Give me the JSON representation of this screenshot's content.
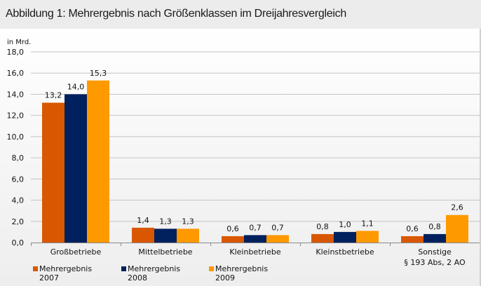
{
  "header": {
    "title": "Abbildung 1:  Mehrergebnis nach Größenklassen im Dreijahresvergleich"
  },
  "chart_data": {
    "type": "bar",
    "title": "Abbildung 1:  Mehrergebnis nach Größenklassen im Dreijahresvergleich",
    "ylabel": "in Mrd.",
    "xlabel": "",
    "ylim": [
      0,
      18
    ],
    "ytick_step": 2,
    "yticks": [
      "0,0",
      "2,0",
      "4,0",
      "6,0",
      "8,0",
      "10,0",
      "12,0",
      "14,0",
      "16,0",
      "18,0"
    ],
    "grid": true,
    "legend_position": "bottom",
    "categories": [
      {
        "line1": "Großbetriebe",
        "line2": ""
      },
      {
        "line1": "Mittelbetriebe",
        "line2": ""
      },
      {
        "line1": "Kleinbetriebe",
        "line2": ""
      },
      {
        "line1": "Kleinstbetriebe",
        "line2": ""
      },
      {
        "line1": "Sonstige",
        "line2": "§ 193 Abs, 2 AO"
      }
    ],
    "series": [
      {
        "name_line1": "Mehrergebnis",
        "name_line2": "2007",
        "color": "#d95700",
        "values": [
          13.2,
          1.4,
          0.6,
          0.8,
          0.6
        ],
        "labels": [
          "13,2",
          "1,4",
          "0,6",
          "0,8",
          "0,6"
        ]
      },
      {
        "name_line1": "Mehrergebnis",
        "name_line2": "2008",
        "color": "#00205e",
        "values": [
          14.0,
          1.3,
          0.7,
          1.0,
          0.8
        ],
        "labels": [
          "14,0",
          "1,3",
          "0,7",
          "1,0",
          "0,8"
        ]
      },
      {
        "name_line1": "Mehrergebnis",
        "name_line2": "2009",
        "color": "#ff9900",
        "values": [
          15.3,
          1.3,
          0.7,
          1.1,
          2.6
        ],
        "labels": [
          "15,3",
          "1,3",
          "0,7",
          "1,1",
          "2,6"
        ]
      }
    ]
  }
}
